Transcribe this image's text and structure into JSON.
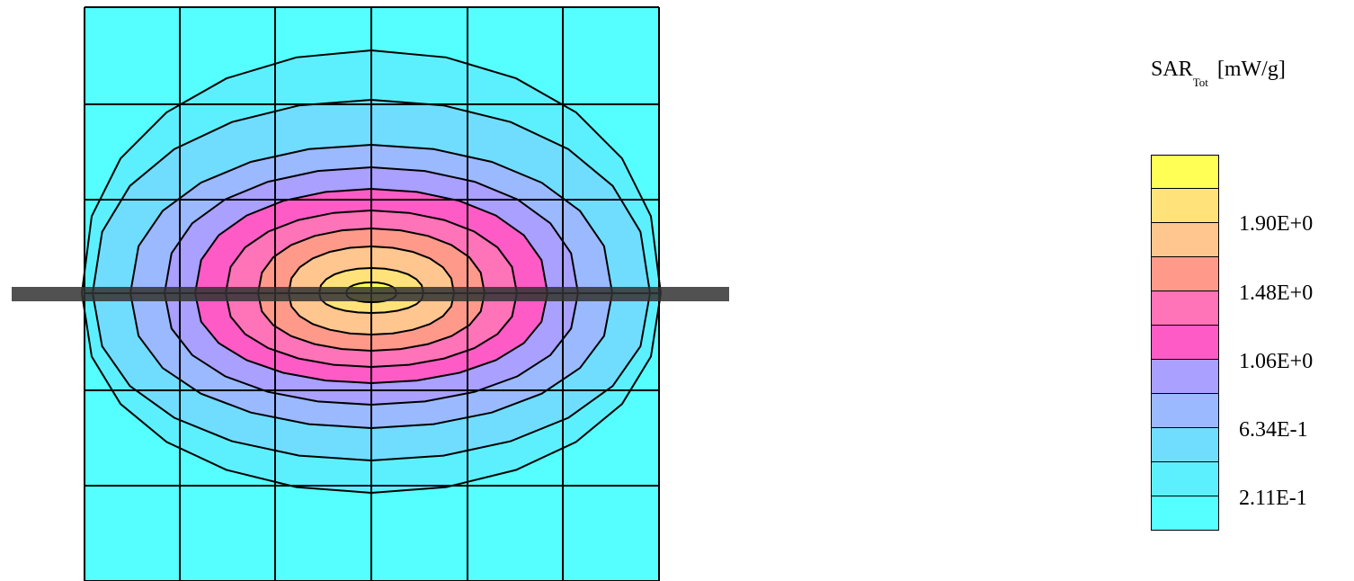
{
  "chart_data": {
    "type": "heatmap",
    "title": "",
    "quantity": "SAR",
    "quantity_subscript": "Tot",
    "unit": "[mW/g]",
    "colorbar": {
      "levels": [
        {
          "color": "#ffff55"
        },
        {
          "color": "#ffe37a"
        },
        {
          "color": "#ffc690"
        },
        {
          "color": "#ff9a8a"
        },
        {
          "color": "#ff73b8"
        },
        {
          "color": "#ff5bc6"
        },
        {
          "color": "#a9a0ff"
        },
        {
          "color": "#9bb9ff"
        },
        {
          "color": "#70ddff"
        },
        {
          "color": "#5cf0ff"
        },
        {
          "color": "#55ffff"
        }
      ],
      "tick_labels": [
        "1.90E+0",
        "1.48E+0",
        "1.06E+0",
        "6.34E-1",
        "2.11E-1"
      ]
    },
    "feed_line_color": "#333333"
  }
}
